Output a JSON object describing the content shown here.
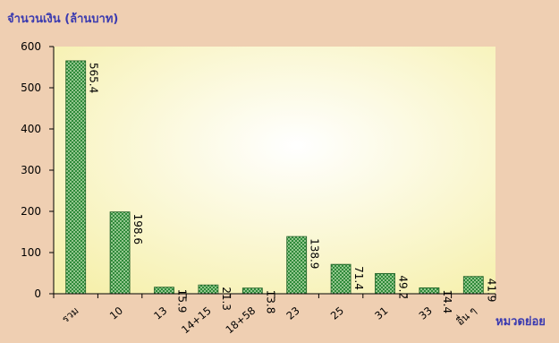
{
  "chart_data": {
    "type": "bar",
    "ylabel": "จำนวนเงิน (ล้านบาท)",
    "xlabel": "หมวดย่อย",
    "categories": [
      "รวม",
      "10",
      "13",
      "14+15",
      "18+58",
      "23",
      "25",
      "31",
      "33",
      "อื่น ๆ"
    ],
    "values": [
      565.4,
      198.6,
      15.9,
      21.3,
      13.8,
      138.9,
      71.4,
      49.2,
      14.4,
      41.9
    ],
    "data_labels": [
      "565.4",
      "198.6",
      "15.9",
      "21.3",
      "13.8",
      "138.9",
      "71.4",
      "49.2",
      "14.4",
      "41.9"
    ],
    "ylim": [
      0,
      600
    ],
    "yticks": [
      0,
      100,
      200,
      300,
      400,
      500,
      600
    ],
    "grid": false,
    "legend": "none",
    "colors": {
      "bar_fill": "#2f8a3a",
      "bar_dot": "#d9f2c8",
      "plot_bg_center": "#ffffff",
      "plot_bg_edge": "#f7f2b0",
      "page_bg": "#efcfb2",
      "axis_title": "#3a3ab0"
    }
  }
}
